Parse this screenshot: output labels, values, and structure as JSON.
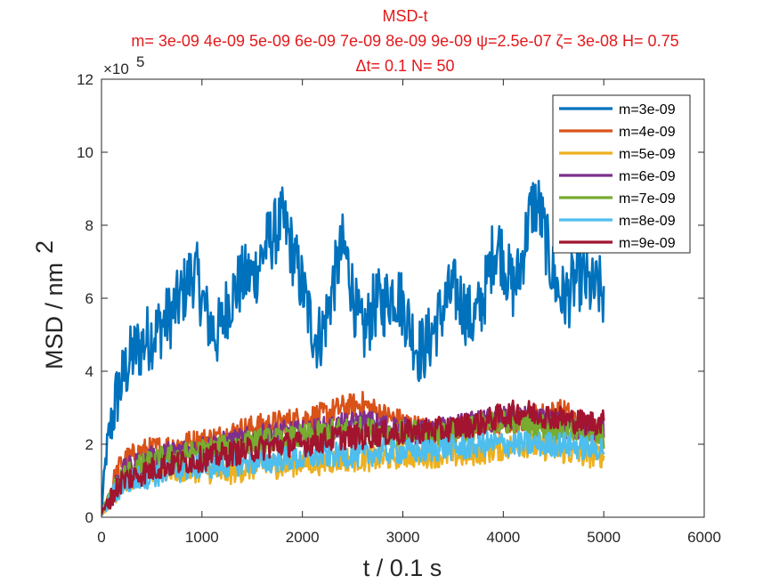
{
  "chart_data": {
    "type": "line",
    "title": "MSD-t",
    "subtitle_line1": "m= 3e-09 4e-09 5e-09 6e-09 7e-09 8e-09 9e-09 ψ=2.5e-07 ζ= 3e-08 H= 0.75",
    "subtitle_line2": "Δt= 0.1 N= 50",
    "xlabel": "t / 0.1 s",
    "ylabel": "MSD / nm",
    "ylabel_superscript": "2",
    "y_exponent_base": "×10",
    "y_exponent_power": "5",
    "xlim": [
      0,
      6000
    ],
    "ylim": [
      0,
      12
    ],
    "xticks": [
      0,
      1000,
      2000,
      3000,
      4000,
      5000,
      6000
    ],
    "yticks": [
      0,
      2,
      4,
      6,
      8,
      10,
      12
    ],
    "legend_position": "top-right",
    "grid": false,
    "series": [
      {
        "name": "m=3e-09",
        "color": "#0072BD",
        "x": [
          0,
          50,
          100,
          150,
          200,
          250,
          300,
          350,
          400,
          450,
          500,
          550,
          600,
          650,
          700,
          750,
          800,
          850,
          900,
          950,
          1000,
          1050,
          1100,
          1150,
          1200,
          1250,
          1300,
          1350,
          1400,
          1450,
          1500,
          1550,
          1600,
          1650,
          1700,
          1750,
          1800,
          1850,
          1900,
          1950,
          2000,
          2050,
          2100,
          2150,
          2200,
          2250,
          2300,
          2350,
          2400,
          2450,
          2500,
          2550,
          2600,
          2650,
          2700,
          2750,
          2800,
          2850,
          2900,
          2950,
          3000,
          3050,
          3100,
          3150,
          3200,
          3250,
          3300,
          3350,
          3400,
          3450,
          3500,
          3550,
          3600,
          3650,
          3700,
          3750,
          3800,
          3850,
          3900,
          3950,
          4000,
          4050,
          4100,
          4150,
          4200,
          4250,
          4300,
          4350,
          4400,
          4450,
          4500,
          4550,
          4600,
          4650,
          4700,
          4750,
          4800,
          4850,
          4900,
          4950,
          5000
        ],
        "y": [
          0.2,
          1.8,
          2.6,
          3.3,
          3.7,
          4.1,
          4.4,
          4.6,
          4.7,
          4.9,
          5.0,
          5.1,
          5.3,
          5.4,
          5.6,
          5.8,
          6.1,
          6.4,
          6.7,
          6.6,
          6.0,
          5.5,
          5.2,
          5.0,
          5.3,
          5.8,
          6.1,
          6.3,
          6.5,
          6.6,
          6.6,
          6.8,
          7.2,
          7.5,
          7.7,
          7.9,
          8.1,
          7.8,
          7.3,
          6.8,
          6.3,
          5.7,
          5.2,
          4.9,
          5.1,
          5.6,
          6.3,
          6.9,
          7.4,
          7.0,
          6.2,
          5.4,
          5.0,
          5.3,
          5.7,
          5.9,
          5.8,
          6.0,
          6.2,
          6.1,
          5.8,
          5.4,
          5.0,
          4.6,
          4.6,
          4.8,
          5.1,
          5.4,
          5.7,
          6.0,
          6.2,
          6.1,
          5.8,
          5.5,
          5.4,
          5.6,
          6.0,
          6.6,
          7.3,
          7.5,
          7.1,
          6.6,
          6.3,
          6.6,
          7.3,
          8.1,
          8.6,
          8.5,
          7.9,
          7.2,
          6.6,
          6.2,
          6.0,
          6.1,
          6.4,
          6.6,
          6.5,
          6.3,
          6.2,
          6.3,
          6.0
        ]
      },
      {
        "name": "m=4e-09",
        "color": "#D95319",
        "x": [
          0,
          200,
          400,
          600,
          800,
          1000,
          1200,
          1400,
          1600,
          1800,
          2000,
          2200,
          2400,
          2600,
          2800,
          3000,
          3200,
          3400,
          3600,
          3800,
          4000,
          4200,
          4400,
          4600,
          4800,
          5000
        ],
        "y": [
          0.1,
          1.5,
          1.8,
          1.9,
          2.0,
          2.1,
          2.2,
          2.4,
          2.5,
          2.6,
          2.7,
          2.8,
          3.0,
          3.1,
          2.8,
          2.6,
          2.4,
          2.3,
          2.4,
          2.5,
          2.6,
          2.7,
          2.8,
          2.9,
          2.5,
          2.3
        ]
      },
      {
        "name": "m=5e-09",
        "color": "#EDB120",
        "x": [
          0,
          200,
          400,
          600,
          800,
          1000,
          1200,
          1400,
          1600,
          1800,
          2000,
          2200,
          2400,
          2600,
          2800,
          3000,
          3200,
          3400,
          3600,
          3800,
          4000,
          4200,
          4400,
          4600,
          4800,
          5000
        ],
        "y": [
          0.1,
          1.0,
          1.2,
          1.3,
          1.3,
          1.3,
          1.2,
          1.3,
          1.4,
          1.4,
          1.5,
          1.5,
          1.6,
          1.6,
          1.6,
          1.7,
          1.7,
          1.7,
          1.7,
          1.8,
          1.9,
          2.0,
          1.9,
          1.8,
          1.7,
          1.7
        ]
      },
      {
        "name": "m=6e-09",
        "color": "#7E2F8E",
        "x": [
          0,
          200,
          400,
          600,
          800,
          1000,
          1200,
          1400,
          1600,
          1800,
          2000,
          2200,
          2400,
          2600,
          2800,
          3000,
          3200,
          3400,
          3600,
          3800,
          4000,
          4200,
          4400,
          4600,
          4800,
          5000
        ],
        "y": [
          0.1,
          1.2,
          1.5,
          1.7,
          1.8,
          1.9,
          2.0,
          2.1,
          2.2,
          2.3,
          2.3,
          2.4,
          2.5,
          2.6,
          2.5,
          2.4,
          2.3,
          2.4,
          2.5,
          2.6,
          2.7,
          2.7,
          2.6,
          2.5,
          2.4,
          2.4
        ]
      },
      {
        "name": "m=7e-09",
        "color": "#77AC30",
        "x": [
          0,
          200,
          400,
          600,
          800,
          1000,
          1200,
          1400,
          1600,
          1800,
          2000,
          2200,
          2400,
          2600,
          2800,
          3000,
          3200,
          3400,
          3600,
          3800,
          4000,
          4200,
          4400,
          4600,
          4800,
          5000
        ],
        "y": [
          0.1,
          1.1,
          1.4,
          1.6,
          1.7,
          1.8,
          1.9,
          2.0,
          2.1,
          2.1,
          2.2,
          2.3,
          2.4,
          2.4,
          2.3,
          2.3,
          2.3,
          2.3,
          2.4,
          2.5,
          2.6,
          2.6,
          2.5,
          2.4,
          2.3,
          2.2
        ]
      },
      {
        "name": "m=8e-09",
        "color": "#4DBEEE",
        "x": [
          0,
          200,
          400,
          600,
          800,
          1000,
          1200,
          1400,
          1600,
          1800,
          2000,
          2200,
          2400,
          2600,
          2800,
          3000,
          3200,
          3400,
          3600,
          3800,
          4000,
          4200,
          4400,
          4600,
          4800,
          5000
        ],
        "y": [
          0.1,
          0.9,
          1.1,
          1.2,
          1.3,
          1.4,
          1.4,
          1.5,
          1.5,
          1.6,
          1.6,
          1.7,
          1.7,
          1.7,
          1.8,
          1.8,
          1.8,
          1.9,
          1.9,
          2.0,
          2.0,
          2.0,
          2.0,
          2.0,
          1.9,
          1.9
        ]
      },
      {
        "name": "m=9e-09",
        "color": "#A2142F",
        "x": [
          0,
          200,
          400,
          600,
          800,
          1000,
          1200,
          1400,
          1600,
          1800,
          2000,
          2200,
          2400,
          2600,
          2800,
          3000,
          3200,
          3400,
          3600,
          3800,
          4000,
          4200,
          4400,
          4600,
          4800,
          5000
        ],
        "y": [
          0.1,
          1.0,
          1.2,
          1.4,
          1.5,
          1.6,
          1.7,
          1.8,
          1.9,
          2.0,
          2.0,
          2.1,
          2.2,
          2.2,
          2.3,
          2.3,
          2.4,
          2.4,
          2.5,
          2.6,
          2.8,
          2.9,
          2.8,
          2.7,
          2.6,
          2.6
        ]
      }
    ]
  }
}
